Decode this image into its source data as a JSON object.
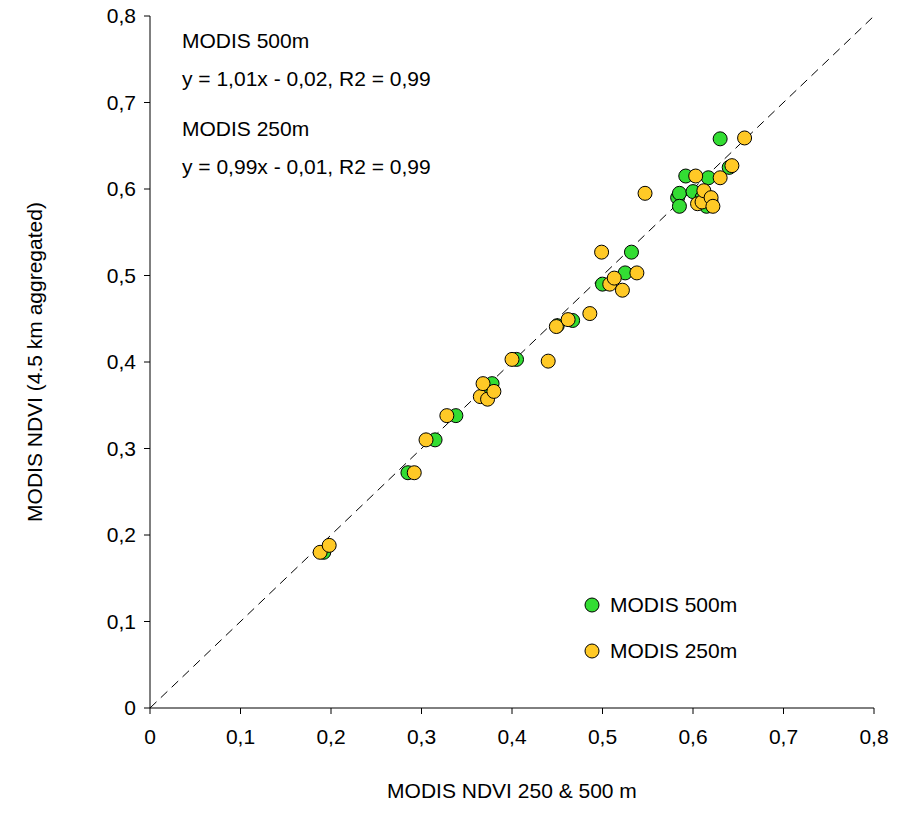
{
  "chart_data": {
    "type": "scatter",
    "x_label": "MODIS NDVI 250 & 500 m",
    "y_label": "MODIS NDVI (4.5 km aggregated)",
    "annotations": [
      "MODIS 500m",
      "y = 1,01x - 0,02, R2 = 0,99",
      "MODIS 250m",
      "y = 0,99x - 0,01, R2 = 0,99"
    ],
    "xlim": [
      0,
      0.8
    ],
    "ylim": [
      0,
      0.8
    ],
    "xticks": [
      0,
      {
        "value": 0.1,
        "label": "0,1"
      },
      {
        "value": 0.2,
        "label": "0,2"
      },
      {
        "value": 0.3,
        "label": "0,3"
      },
      {
        "value": 0.4,
        "label": "0,4"
      },
      {
        "value": 0.5,
        "label": "0,5"
      },
      {
        "value": 0.6,
        "label": "0,6"
      },
      {
        "value": 0.7,
        "label": "0,7"
      },
      {
        "value": 0.8,
        "label": "0,8"
      }
    ],
    "yticks": [
      0,
      {
        "value": 0.1,
        "label": "0,1"
      },
      {
        "value": 0.2,
        "label": "0,2"
      },
      {
        "value": 0.3,
        "label": "0,3"
      },
      {
        "value": 0.4,
        "label": "0,4"
      },
      {
        "value": 0.5,
        "label": "0,5"
      },
      {
        "value": 0.6,
        "label": "0,6"
      },
      {
        "value": 0.7,
        "label": "0,7"
      },
      {
        "value": 0.8,
        "label": "0,8"
      }
    ],
    "grid": false,
    "legend": "bottom-right",
    "series": [
      {
        "name": "MODIS 500m",
        "color": "#33dd33",
        "marker": "circle",
        "x": [
          0.192,
          0.285,
          0.315,
          0.338,
          0.378,
          0.372,
          0.405,
          0.467,
          0.45,
          0.5,
          0.525,
          0.532,
          0.583,
          0.585,
          0.585,
          0.592,
          0.6,
          0.61,
          0.617,
          0.62,
          0.63,
          0.64,
          0.615
        ],
        "values": [
          0.18,
          0.272,
          0.31,
          0.338,
          0.375,
          0.36,
          0.403,
          0.448,
          0.442,
          0.49,
          0.503,
          0.527,
          0.59,
          0.595,
          0.58,
          0.615,
          0.597,
          0.59,
          0.613,
          0.585,
          0.658,
          0.625,
          0.58
        ]
      },
      {
        "name": "MODIS 250m",
        "color": "#ffc926",
        "marker": "circle",
        "x": [
          0.188,
          0.198,
          0.292,
          0.305,
          0.328,
          0.365,
          0.368,
          0.373,
          0.38,
          0.4,
          0.44,
          0.449,
          0.462,
          0.486,
          0.499,
          0.508,
          0.513,
          0.522,
          0.538,
          0.547,
          0.603,
          0.605,
          0.61,
          0.612,
          0.62,
          0.622,
          0.63,
          0.643,
          0.657
        ],
        "values": [
          0.18,
          0.188,
          0.272,
          0.31,
          0.338,
          0.36,
          0.375,
          0.357,
          0.366,
          0.403,
          0.401,
          0.441,
          0.449,
          0.456,
          0.527,
          0.49,
          0.497,
          0.483,
          0.503,
          0.595,
          0.615,
          0.583,
          0.585,
          0.598,
          0.59,
          0.58,
          0.613,
          0.627,
          0.659
        ]
      }
    ]
  }
}
